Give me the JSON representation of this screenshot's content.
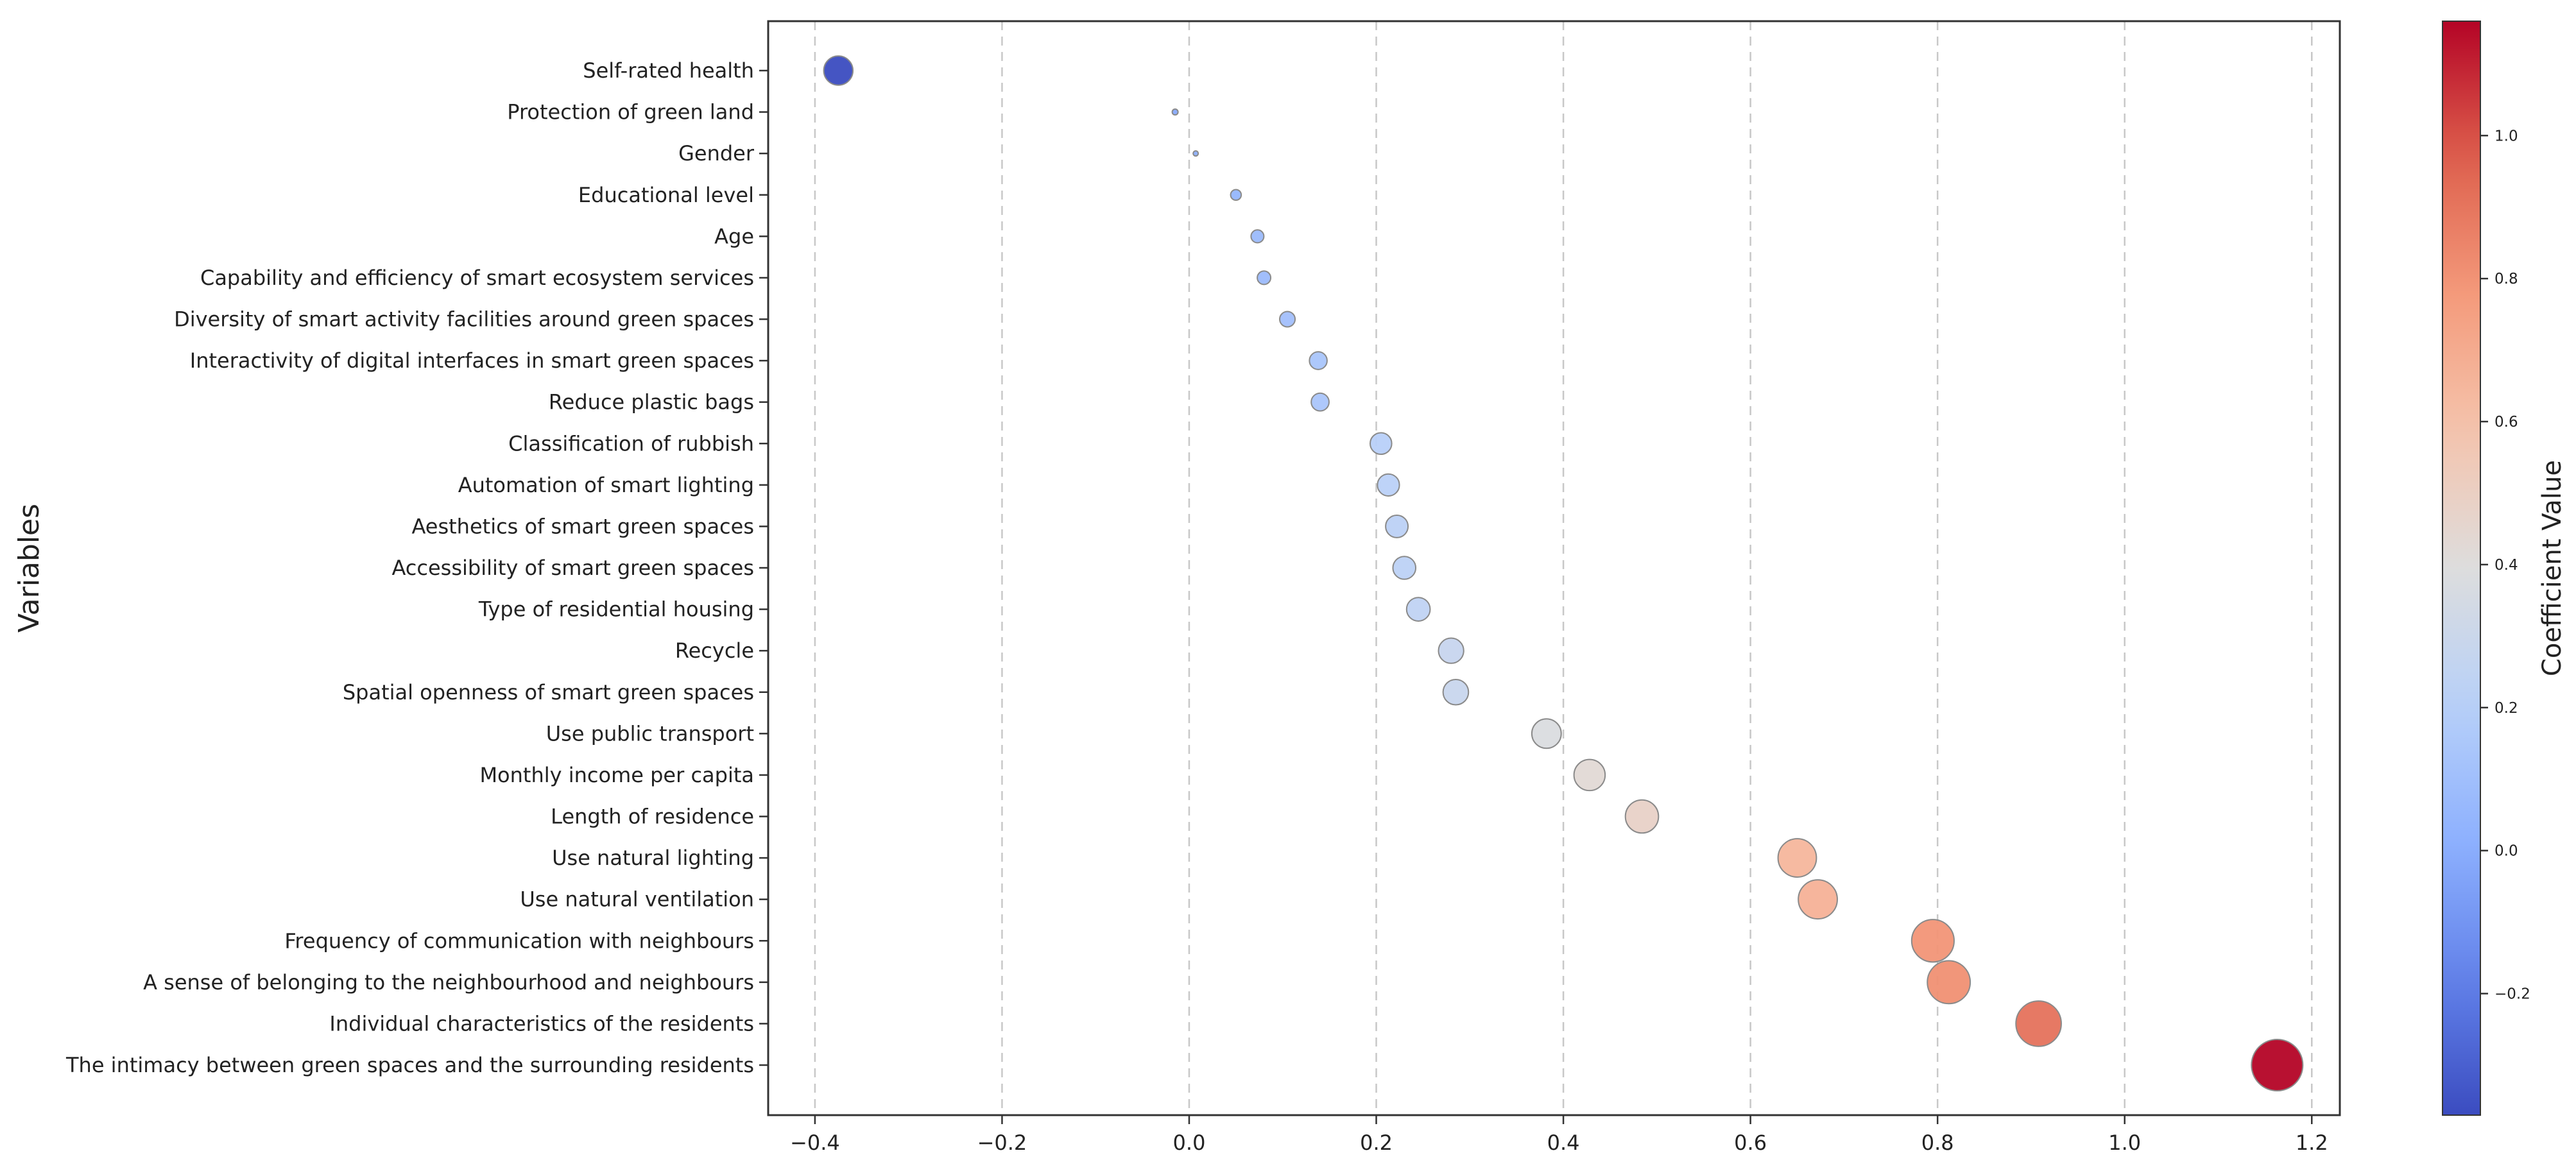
{
  "chart_data": {
    "type": "scatter",
    "title": "",
    "xlabel": "",
    "ylabel": "Variables",
    "xlim": [
      -0.45,
      1.23
    ],
    "xticks": [
      -0.4,
      -0.2,
      0.0,
      0.2,
      0.4,
      0.6,
      0.8,
      1.0,
      1.2
    ],
    "xtick_labels": [
      "−0.4",
      "−0.2",
      "0.0",
      "0.2",
      "0.4",
      "0.6",
      "0.8",
      "1.0",
      "1.2"
    ],
    "grid": "vertical dashed",
    "colorbar": {
      "label": "Coefficient Value",
      "range": [
        -0.37,
        1.16
      ],
      "colormap": "coolwarm",
      "ticks": [
        -0.2,
        0.0,
        0.2,
        0.4,
        0.6,
        0.8,
        1.0
      ],
      "tick_labels": [
        "−0.2",
        "0.0",
        "0.2",
        "0.4",
        "0.6",
        "0.8",
        "1.0"
      ]
    },
    "colors": {
      "low": "#3b4cc0",
      "mid": "#dddddd",
      "high": "#b40426"
    },
    "points": [
      {
        "label": "Self-rated health",
        "value": -0.375
      },
      {
        "label": "Protection of green land",
        "value": -0.015
      },
      {
        "label": "Gender",
        "value": 0.007
      },
      {
        "label": "Educational level",
        "value": 0.05
      },
      {
        "label": "Age",
        "value": 0.073
      },
      {
        "label": "Capability and efficiency of smart ecosystem services",
        "value": 0.08
      },
      {
        "label": "Diversity of smart activity facilities around green spaces",
        "value": 0.105
      },
      {
        "label": "Interactivity of digital interfaces in smart green spaces",
        "value": 0.138
      },
      {
        "label": "Reduce plastic bags",
        "value": 0.14
      },
      {
        "label": "Classification of rubbish",
        "value": 0.205
      },
      {
        "label": "Automation of smart lighting",
        "value": 0.213
      },
      {
        "label": "Aesthetics of smart green spaces",
        "value": 0.222
      },
      {
        "label": "Accessibility of smart green spaces",
        "value": 0.23
      },
      {
        "label": "Type of residential housing",
        "value": 0.245
      },
      {
        "label": "Recycle",
        "value": 0.28
      },
      {
        "label": "Spatial openness of smart green spaces",
        "value": 0.285
      },
      {
        "label": "Use public transport",
        "value": 0.382
      },
      {
        "label": "Monthly income per capita",
        "value": 0.428
      },
      {
        "label": "Length of residence",
        "value": 0.484
      },
      {
        "label": "Use natural lighting",
        "value": 0.65
      },
      {
        "label": "Use natural ventilation",
        "value": 0.672
      },
      {
        "label": "Frequency of communication with neighbours",
        "value": 0.795
      },
      {
        "label": "A sense of belonging to the neighbourhood and neighbours",
        "value": 0.812
      },
      {
        "label": "Individual characteristics of the residents",
        "value": 0.908
      },
      {
        "label": "The intimacy between green spaces and the surrounding residents",
        "value": 1.163
      }
    ]
  }
}
